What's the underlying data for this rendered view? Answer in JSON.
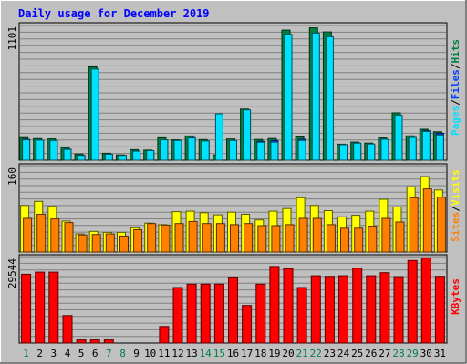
{
  "chart_data": {
    "type": "bar",
    "title": "Daily usage for December 2019",
    "categories": [
      "1",
      "2",
      "3",
      "4",
      "5",
      "6",
      "7",
      "8",
      "9",
      "10",
      "11",
      "12",
      "13",
      "14",
      "15",
      "16",
      "17",
      "18",
      "19",
      "20",
      "21",
      "22",
      "23",
      "24",
      "25",
      "26",
      "27",
      "28",
      "29",
      "30",
      "31"
    ],
    "weekend_days": [
      "1",
      "7",
      "8",
      "14",
      "15",
      "21",
      "22",
      "28",
      "29"
    ],
    "panels": [
      {
        "ymax_label": "1101",
        "ylim": [
          0,
          1101
        ],
        "series": [
          {
            "name": "Hits",
            "color": "#008040",
            "values": [
              188,
              180,
              178,
              106,
              52,
              778,
              58,
              44,
              88,
              84,
              187,
              170,
              202,
              172,
              43,
              177,
              427,
              173,
              181,
              1085,
              194,
              1104,
              1070,
              134,
              151,
              143,
              185,
              395,
              203,
              258,
              237
            ]
          },
          {
            "name": "Files",
            "color": "#0040ff",
            "values": [
              175,
              165,
              160,
              92,
              40,
              738,
              48,
              35,
              77,
              70,
              165,
              155,
              188,
              160,
              0,
              161,
              0,
              157,
              164,
              0,
              175,
              0,
              0,
              126,
              138,
              130,
              172,
              0,
              190,
              245,
              225
            ]
          },
          {
            "name": "Pages",
            "color": "#00e0ff",
            "values": [
              170,
              168,
              165,
              90,
              40,
              760,
              50,
              40,
              75,
              80,
              170,
              165,
              185,
              160,
              387,
              165,
              420,
              150,
              150,
              1050,
              165,
              1060,
              1030,
              130,
              143,
              135,
              175,
              375,
              190,
              240,
              210
            ]
          }
        ],
        "legend": [
          "Pages",
          "/",
          "Files",
          "/",
          "Hits"
        ],
        "legend_colors": [
          "#00e0ff",
          "#000000",
          "#0040ff",
          "#000000",
          "#008040"
        ]
      },
      {
        "ymax_label": "160",
        "ylim": [
          0,
          160
        ],
        "series": [
          {
            "name": "Visits",
            "color": "#ffff00",
            "values": [
              90,
              98,
              88,
              60,
              35,
              40,
              38,
              38,
              47,
              56,
              53,
              78,
              79,
              76,
              72,
              77,
              73,
              62,
              79,
              84,
              105,
              90,
              80,
              68,
              71,
              79,
              102,
              87,
              126,
              146,
              120
            ]
          },
          {
            "name": "Sites",
            "color": "#ff8000",
            "values": [
              65,
              73,
              64,
              57,
              33,
              34,
              35,
              31,
              43,
              55,
              52,
              55,
              59,
              55,
              55,
              53,
              55,
              51,
              51,
              53,
              65,
              65,
              53,
              46,
              46,
              50,
              65,
              58,
              105,
              122,
              106
            ]
          }
        ],
        "legend": [
          "Sites",
          "/",
          "Visits"
        ],
        "legend_colors": [
          "#ff8000",
          "#000000",
          "#ffff00"
        ]
      },
      {
        "ymax_label": "29544",
        "ylim": [
          0,
          29544
        ],
        "series": [
          {
            "name": "KBytes",
            "color": "#ff0000",
            "values": [
              24550,
              25300,
              25300,
              9800,
              1100,
              1100,
              1100,
              0,
              0,
              0,
              5900,
              19800,
              21000,
              21000,
              21000,
              23500,
              13400,
              21000,
              27300,
              26500,
              19800,
              24000,
              23800,
              24000,
              26700,
              24000,
              25100,
              23700,
              29450,
              30300,
              23800
            ]
          }
        ],
        "legend": [
          "KBytes"
        ],
        "legend_colors": [
          "#ff0000"
        ]
      }
    ]
  }
}
